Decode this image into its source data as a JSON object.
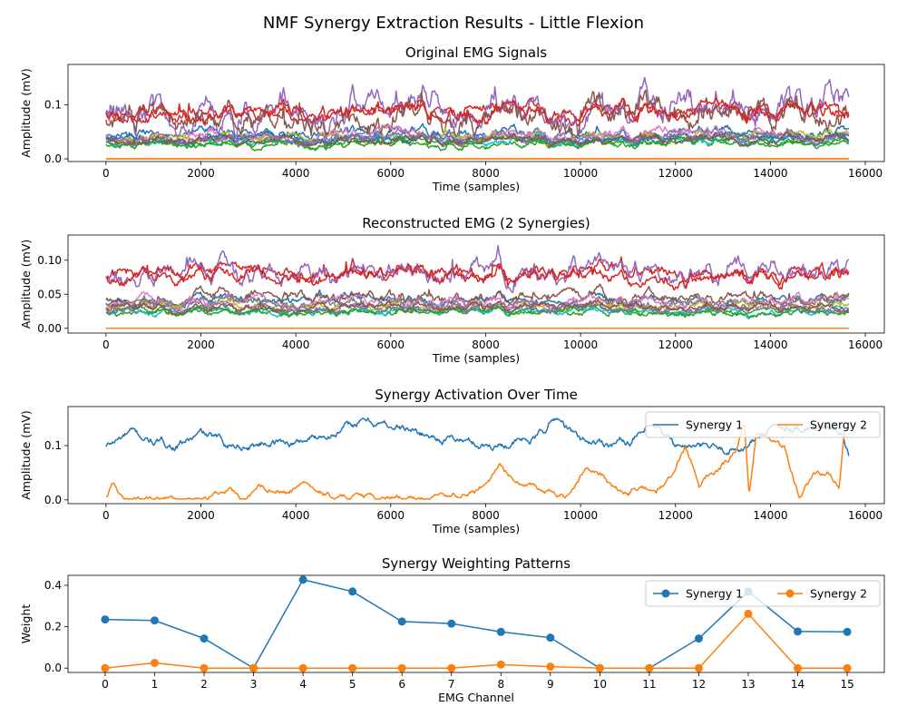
{
  "figure": {
    "title": "NMF Synergy Extraction Results - Little Flexion"
  },
  "palette": [
    "#1f77b4",
    "#ff7f0e",
    "#2ca02c",
    "#d62728",
    "#9467bd",
    "#8c564b",
    "#e377c2",
    "#7f7f7f",
    "#bcbd22",
    "#17becf"
  ],
  "chart_data": [
    {
      "type": "line",
      "title": "Original EMG Signals",
      "xlabel": "Time (samples)",
      "ylabel": "Amplitude (mV)",
      "xlim": [
        -800,
        16400
      ],
      "ylim": [
        -0.005,
        0.175
      ],
      "xticks": [
        0,
        2000,
        4000,
        6000,
        8000,
        10000,
        12000,
        14000,
        16000
      ],
      "yticks": [
        0.0,
        0.1
      ],
      "ytick_labels": [
        "0.0",
        "0.1"
      ],
      "legend": null,
      "channel_count": 16,
      "n_samples": 15650,
      "series": [
        {
          "channel": 0,
          "color": "#1f77b4",
          "base": 0.045,
          "amp": 0.013
        },
        {
          "channel": 1,
          "color": "#ff7f0e",
          "base": 0.0,
          "amp": 0.0
        },
        {
          "channel": 2,
          "color": "#2ca02c",
          "base": 0.027,
          "amp": 0.009
        },
        {
          "channel": 3,
          "color": "#d62728",
          "base": 0.085,
          "amp": 0.02
        },
        {
          "channel": 4,
          "color": "#9467bd",
          "base": 0.087,
          "amp": 0.04
        },
        {
          "channel": 5,
          "color": "#8c564b",
          "base": 0.073,
          "amp": 0.035
        },
        {
          "channel": 6,
          "color": "#e377c2",
          "base": 0.042,
          "amp": 0.014
        },
        {
          "channel": 7,
          "color": "#7f7f7f",
          "base": 0.036,
          "amp": 0.01
        },
        {
          "channel": 8,
          "color": "#bcbd22",
          "base": 0.04,
          "amp": 0.012
        },
        {
          "channel": 9,
          "color": "#17becf",
          "base": 0.033,
          "amp": 0.01
        },
        {
          "channel": 10,
          "color": "#1f77b4",
          "base": 0.038,
          "amp": 0.01
        },
        {
          "channel": 11,
          "color": "#ff7f0e",
          "base": 0.0,
          "amp": 0.0
        },
        {
          "channel": 12,
          "color": "#2ca02c",
          "base": 0.03,
          "amp": 0.009
        },
        {
          "channel": 13,
          "color": "#d62728",
          "base": 0.085,
          "amp": 0.02
        },
        {
          "channel": 14,
          "color": "#9467bd",
          "base": 0.038,
          "amp": 0.012
        },
        {
          "channel": 15,
          "color": "#8c564b",
          "base": 0.036,
          "amp": 0.011
        }
      ]
    },
    {
      "type": "line",
      "title": "Reconstructed EMG (2 Synergies)",
      "xlabel": "Time (samples)",
      "ylabel": "Amplitude (mV)",
      "xlim": [
        -800,
        16400
      ],
      "ylim": [
        -0.007,
        0.137
      ],
      "xticks": [
        0,
        2000,
        4000,
        6000,
        8000,
        10000,
        12000,
        14000,
        16000
      ],
      "yticks": [
        0.0,
        0.05,
        0.1
      ],
      "ytick_labels": [
        "0.00",
        "0.05",
        "0.10"
      ],
      "legend": null,
      "channel_count": 16,
      "n_samples": 15650,
      "series": [
        {
          "channel": 0,
          "color": "#1f77b4",
          "base": 0.0411,
          "amp": 0.01
        },
        {
          "channel": 1,
          "color": "#ff7f0e",
          "base": 0.0,
          "amp": 0.0
        },
        {
          "channel": 2,
          "color": "#2ca02c",
          "base": 0.0255,
          "amp": 0.007
        },
        {
          "channel": 3,
          "color": "#d62728",
          "base": 0.082,
          "amp": 0.015
        },
        {
          "channel": 4,
          "color": "#9467bd",
          "base": 0.083,
          "amp": 0.022
        },
        {
          "channel": 5,
          "color": "#8c564b",
          "base": 0.046,
          "amp": 0.012
        },
        {
          "channel": 6,
          "color": "#e377c2",
          "base": 0.0395,
          "amp": 0.01
        },
        {
          "channel": 7,
          "color": "#7f7f7f",
          "base": 0.0376,
          "amp": 0.01
        },
        {
          "channel": 8,
          "color": "#bcbd22",
          "base": 0.032,
          "amp": 0.008
        },
        {
          "channel": 9,
          "color": "#17becf",
          "base": 0.026,
          "amp": 0.007
        },
        {
          "channel": 10,
          "color": "#1f77b4",
          "base": 0.0,
          "amp": 0.0
        },
        {
          "channel": 11,
          "color": "#ff7f0e",
          "base": 0.0,
          "amp": 0.0
        },
        {
          "channel": 12,
          "color": "#2ca02c",
          "base": 0.025,
          "amp": 0.007
        },
        {
          "channel": 13,
          "color": "#d62728",
          "base": 0.078,
          "amp": 0.015
        },
        {
          "channel": 14,
          "color": "#9467bd",
          "base": 0.031,
          "amp": 0.008
        },
        {
          "channel": 15,
          "color": "#8c564b",
          "base": 0.031,
          "amp": 0.008
        }
      ]
    },
    {
      "type": "line",
      "title": "Synergy Activation Over Time",
      "xlabel": "Time (samples)",
      "ylabel": "Amplitude (mV)",
      "xlim": [
        -800,
        16400
      ],
      "ylim": [
        -0.007,
        0.172
      ],
      "xticks": [
        0,
        2000,
        4000,
        6000,
        8000,
        10000,
        12000,
        14000,
        16000
      ],
      "yticks": [
        0.0,
        0.1
      ],
      "ytick_labels": [
        "0.0",
        "0.1"
      ],
      "legend": {
        "placement": "upper-right",
        "ncol": 2
      },
      "series": [
        {
          "name": "Synergy 1",
          "color": "#1f77b4",
          "key_x": [
            0,
            500,
            1000,
            1500,
            2000,
            2500,
            3000,
            3500,
            4000,
            4500,
            5000,
            5500,
            6000,
            6500,
            7000,
            7500,
            8000,
            8500,
            9000,
            9500,
            10000,
            10500,
            11000,
            11500,
            12000,
            12500,
            13000,
            13500,
            14000,
            14500,
            15000,
            15500,
            15650
          ],
          "key_y": [
            0.098,
            0.123,
            0.105,
            0.1,
            0.12,
            0.105,
            0.1,
            0.11,
            0.105,
            0.12,
            0.13,
            0.145,
            0.138,
            0.125,
            0.115,
            0.11,
            0.1,
            0.105,
            0.11,
            0.152,
            0.108,
            0.105,
            0.11,
            0.13,
            0.1,
            0.095,
            0.09,
            0.1,
            0.13,
            0.14,
            0.135,
            0.12,
            0.08
          ],
          "noise": 0.007
        },
        {
          "name": "Synergy 2",
          "color": "#ff7f0e",
          "key_x": [
            0,
            150,
            300,
            500,
            1000,
            1500,
            2000,
            2300,
            2600,
            2900,
            3200,
            3500,
            3800,
            4100,
            4400,
            4700,
            5000,
            5500,
            6000,
            6500,
            7000,
            7500,
            8000,
            8300,
            8600,
            8900,
            9200,
            9500,
            9800,
            10100,
            10400,
            10700,
            11000,
            11300,
            11600,
            11900,
            12200,
            12500,
            12800,
            13100,
            13300,
            13450,
            13550,
            13700,
            13900,
            14100,
            14300,
            14600,
            14900,
            15200,
            15450,
            15550,
            15650
          ],
          "key_y": [
            0.005,
            0.032,
            0.015,
            0.0,
            0.002,
            0.003,
            0.002,
            0.012,
            0.018,
            0.0,
            0.032,
            0.022,
            0.015,
            0.035,
            0.02,
            0.008,
            0.004,
            0.002,
            0.002,
            0.003,
            0.005,
            0.01,
            0.025,
            0.058,
            0.035,
            0.03,
            0.015,
            0.012,
            0.01,
            0.06,
            0.05,
            0.02,
            0.01,
            0.03,
            0.015,
            0.04,
            0.1,
            0.03,
            0.05,
            0.07,
            0.09,
            0.145,
            0.01,
            0.13,
            0.12,
            0.1,
            0.09,
            0.01,
            0.04,
            0.05,
            0.02,
            0.12,
            0.13
          ],
          "noise": 0.005
        }
      ]
    },
    {
      "type": "line",
      "title": "Synergy Weighting Patterns",
      "xlabel": "EMG Channel",
      "ylabel": "Weight",
      "xlim": [
        -0.75,
        15.75
      ],
      "ylim": [
        -0.021,
        0.448
      ],
      "xticks": [
        0,
        1,
        2,
        3,
        4,
        5,
        6,
        7,
        8,
        9,
        10,
        11,
        12,
        13,
        14,
        15
      ],
      "yticks": [
        0.0,
        0.2,
        0.4
      ],
      "ytick_labels": [
        "0.0",
        "0.2",
        "0.4"
      ],
      "legend": {
        "placement": "upper-right",
        "ncol": 2
      },
      "markers": true,
      "x": [
        0,
        1,
        2,
        3,
        4,
        5,
        6,
        7,
        8,
        9,
        10,
        11,
        12,
        13,
        14,
        15
      ],
      "series": [
        {
          "name": "Synergy 1",
          "color": "#1f77b4",
          "values": [
            0.235,
            0.23,
            0.143,
            0.0,
            0.427,
            0.37,
            0.225,
            0.215,
            0.175,
            0.147,
            0.0,
            0.0,
            0.143,
            0.37,
            0.177,
            0.175
          ]
        },
        {
          "name": "Synergy 2",
          "color": "#ff7f0e",
          "values": [
            0.0,
            0.025,
            0.0,
            0.0,
            0.0,
            0.0,
            0.0,
            0.0,
            0.017,
            0.007,
            0.0,
            0.0,
            0.0,
            0.262,
            0.0,
            0.0
          ]
        }
      ]
    }
  ]
}
